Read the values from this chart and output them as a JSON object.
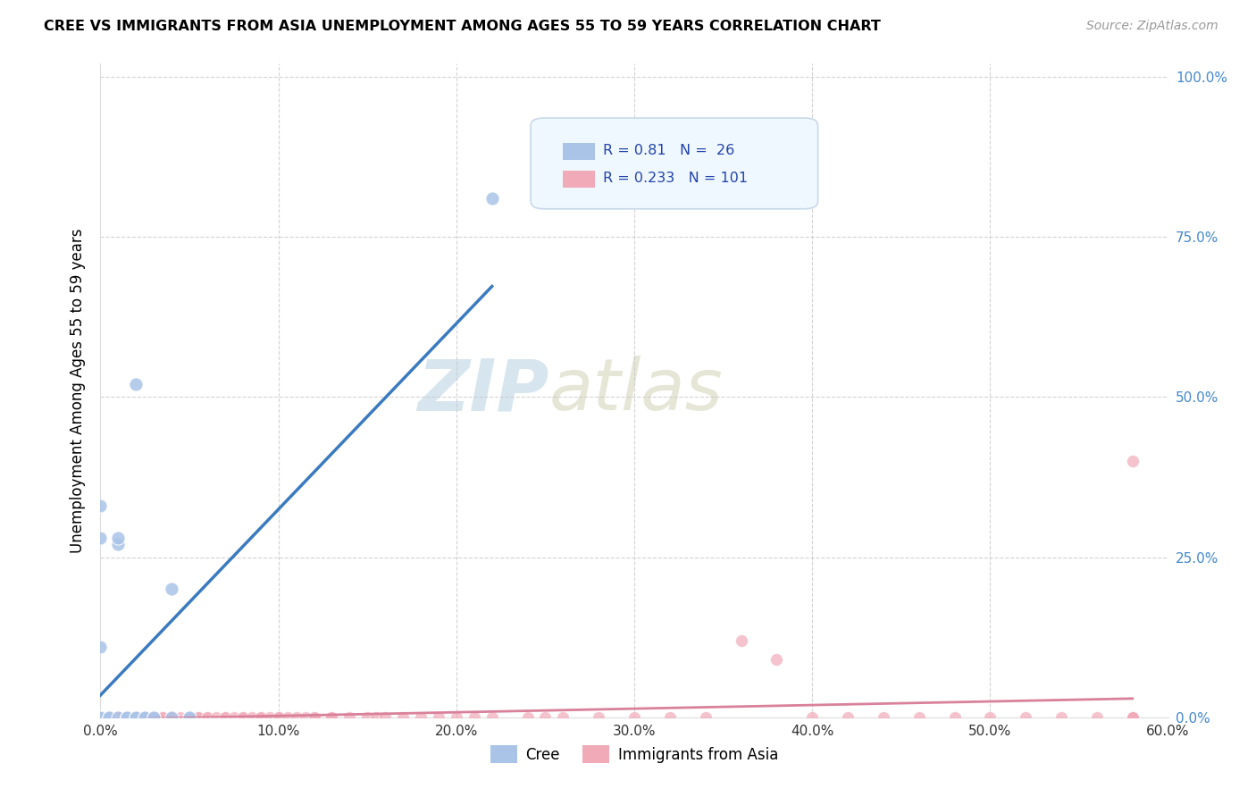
{
  "title": "CREE VS IMMIGRANTS FROM ASIA UNEMPLOYMENT AMONG AGES 55 TO 59 YEARS CORRELATION CHART",
  "source": "Source: ZipAtlas.com",
  "ylabel": "Unemployment Among Ages 55 to 59 years",
  "watermark_zip": "ZIP",
  "watermark_atlas": "atlas",
  "cree_R": 0.81,
  "cree_N": 26,
  "asia_R": 0.233,
  "asia_N": 101,
  "cree_color": "#aac4e8",
  "asia_color": "#f0aab8",
  "cree_line_color": "#3a7abf",
  "asia_line_color": "#d9819a",
  "background_color": "#ffffff",
  "grid_color": "#c8c8c8",
  "xlim": [
    0.0,
    0.6
  ],
  "ylim": [
    0.0,
    1.02
  ],
  "yticks": [
    0.0,
    0.25,
    0.5,
    0.75,
    1.0
  ],
  "ytick_labels": [
    "0.0%",
    "25.0%",
    "50.0%",
    "75.0%",
    "100.0%"
  ],
  "xticks": [
    0.0,
    0.1,
    0.2,
    0.3,
    0.4,
    0.5,
    0.6
  ],
  "xtick_labels": [
    "0.0%",
    "10.0%",
    "20.0%",
    "30.0%",
    "40.0%",
    "50.0%",
    "60.0%"
  ],
  "cree_x": [
    0.0,
    0.0,
    0.0,
    0.0,
    0.0,
    0.0,
    0.005,
    0.005,
    0.01,
    0.01,
    0.01,
    0.015,
    0.015,
    0.015,
    0.02,
    0.02,
    0.02,
    0.025,
    0.025,
    0.03,
    0.03,
    0.04,
    0.04,
    0.05,
    0.05,
    0.22
  ],
  "cree_y": [
    0.0,
    0.0,
    0.0,
    0.11,
    0.28,
    0.33,
    0.0,
    0.0,
    0.27,
    0.28,
    0.0,
    0.0,
    0.0,
    0.0,
    0.52,
    0.0,
    0.0,
    0.0,
    0.0,
    0.0,
    0.0,
    0.2,
    0.0,
    0.0,
    0.0,
    0.81
  ],
  "asia_x": [
    0.0,
    0.0,
    0.0,
    0.0,
    0.0,
    0.005,
    0.005,
    0.005,
    0.005,
    0.005,
    0.01,
    0.01,
    0.01,
    0.01,
    0.01,
    0.015,
    0.015,
    0.015,
    0.015,
    0.02,
    0.02,
    0.02,
    0.02,
    0.025,
    0.025,
    0.025,
    0.03,
    0.03,
    0.03,
    0.03,
    0.03,
    0.035,
    0.035,
    0.04,
    0.04,
    0.04,
    0.04,
    0.045,
    0.05,
    0.05,
    0.05,
    0.055,
    0.055,
    0.06,
    0.06,
    0.065,
    0.07,
    0.07,
    0.075,
    0.08,
    0.08,
    0.085,
    0.09,
    0.09,
    0.095,
    0.1,
    0.1,
    0.105,
    0.11,
    0.115,
    0.12,
    0.12,
    0.13,
    0.13,
    0.14,
    0.15,
    0.155,
    0.16,
    0.17,
    0.18,
    0.19,
    0.2,
    0.21,
    0.22,
    0.24,
    0.25,
    0.26,
    0.28,
    0.3,
    0.32,
    0.34,
    0.36,
    0.38,
    0.4,
    0.42,
    0.44,
    0.46,
    0.48,
    0.5,
    0.52,
    0.54,
    0.56,
    0.58,
    0.58,
    0.58,
    0.58,
    0.58,
    0.58,
    0.58,
    0.58,
    0.58
  ],
  "asia_y": [
    0.0,
    0.0,
    0.0,
    0.0,
    0.0,
    0.0,
    0.0,
    0.0,
    0.0,
    0.0,
    0.0,
    0.0,
    0.0,
    0.0,
    0.0,
    0.0,
    0.0,
    0.0,
    0.0,
    0.0,
    0.0,
    0.0,
    0.0,
    0.0,
    0.0,
    0.0,
    0.0,
    0.0,
    0.0,
    0.0,
    0.0,
    0.0,
    0.0,
    0.0,
    0.0,
    0.0,
    0.0,
    0.0,
    0.0,
    0.0,
    0.0,
    0.0,
    0.0,
    0.0,
    0.0,
    0.0,
    0.0,
    0.0,
    0.0,
    0.0,
    0.0,
    0.0,
    0.0,
    0.0,
    0.0,
    0.0,
    0.0,
    0.0,
    0.0,
    0.0,
    0.0,
    0.0,
    0.0,
    0.0,
    0.0,
    0.0,
    0.0,
    0.0,
    0.0,
    0.0,
    0.0,
    0.0,
    0.0,
    0.0,
    0.0,
    0.0,
    0.0,
    0.0,
    0.0,
    0.0,
    0.0,
    0.12,
    0.09,
    0.0,
    0.0,
    0.0,
    0.0,
    0.0,
    0.0,
    0.0,
    0.0,
    0.0,
    0.0,
    0.0,
    0.0,
    0.0,
    0.0,
    0.0,
    0.0,
    0.0,
    0.4
  ]
}
